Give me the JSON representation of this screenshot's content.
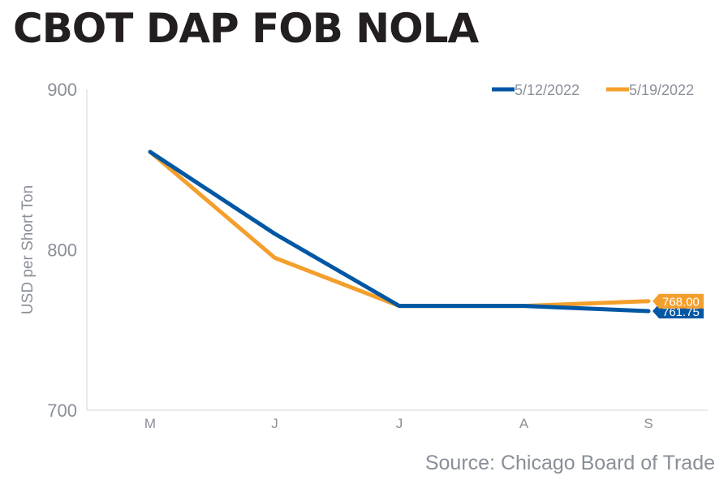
{
  "chart_data": {
    "type": "line",
    "title": "CBOT DAP FOB NOLA",
    "xlabel": "",
    "ylabel": "USD per Short Ton",
    "categories": [
      "M",
      "J",
      "J",
      "A",
      "S"
    ],
    "ylim": [
      700,
      900
    ],
    "yticks": [
      700,
      800,
      900
    ],
    "grid": false,
    "legend_position": "top-right",
    "series": [
      {
        "name": "5/12/2022",
        "color": "#0057a4",
        "values": [
          861,
          810,
          765,
          765,
          761.75
        ],
        "end_label": "761.75"
      },
      {
        "name": "5/19/2022",
        "color": "#f49f2c",
        "values": [
          861,
          795,
          765,
          765,
          768.0
        ],
        "end_label": "768.00"
      }
    ],
    "source": "Source: Chicago Board of Trade"
  }
}
